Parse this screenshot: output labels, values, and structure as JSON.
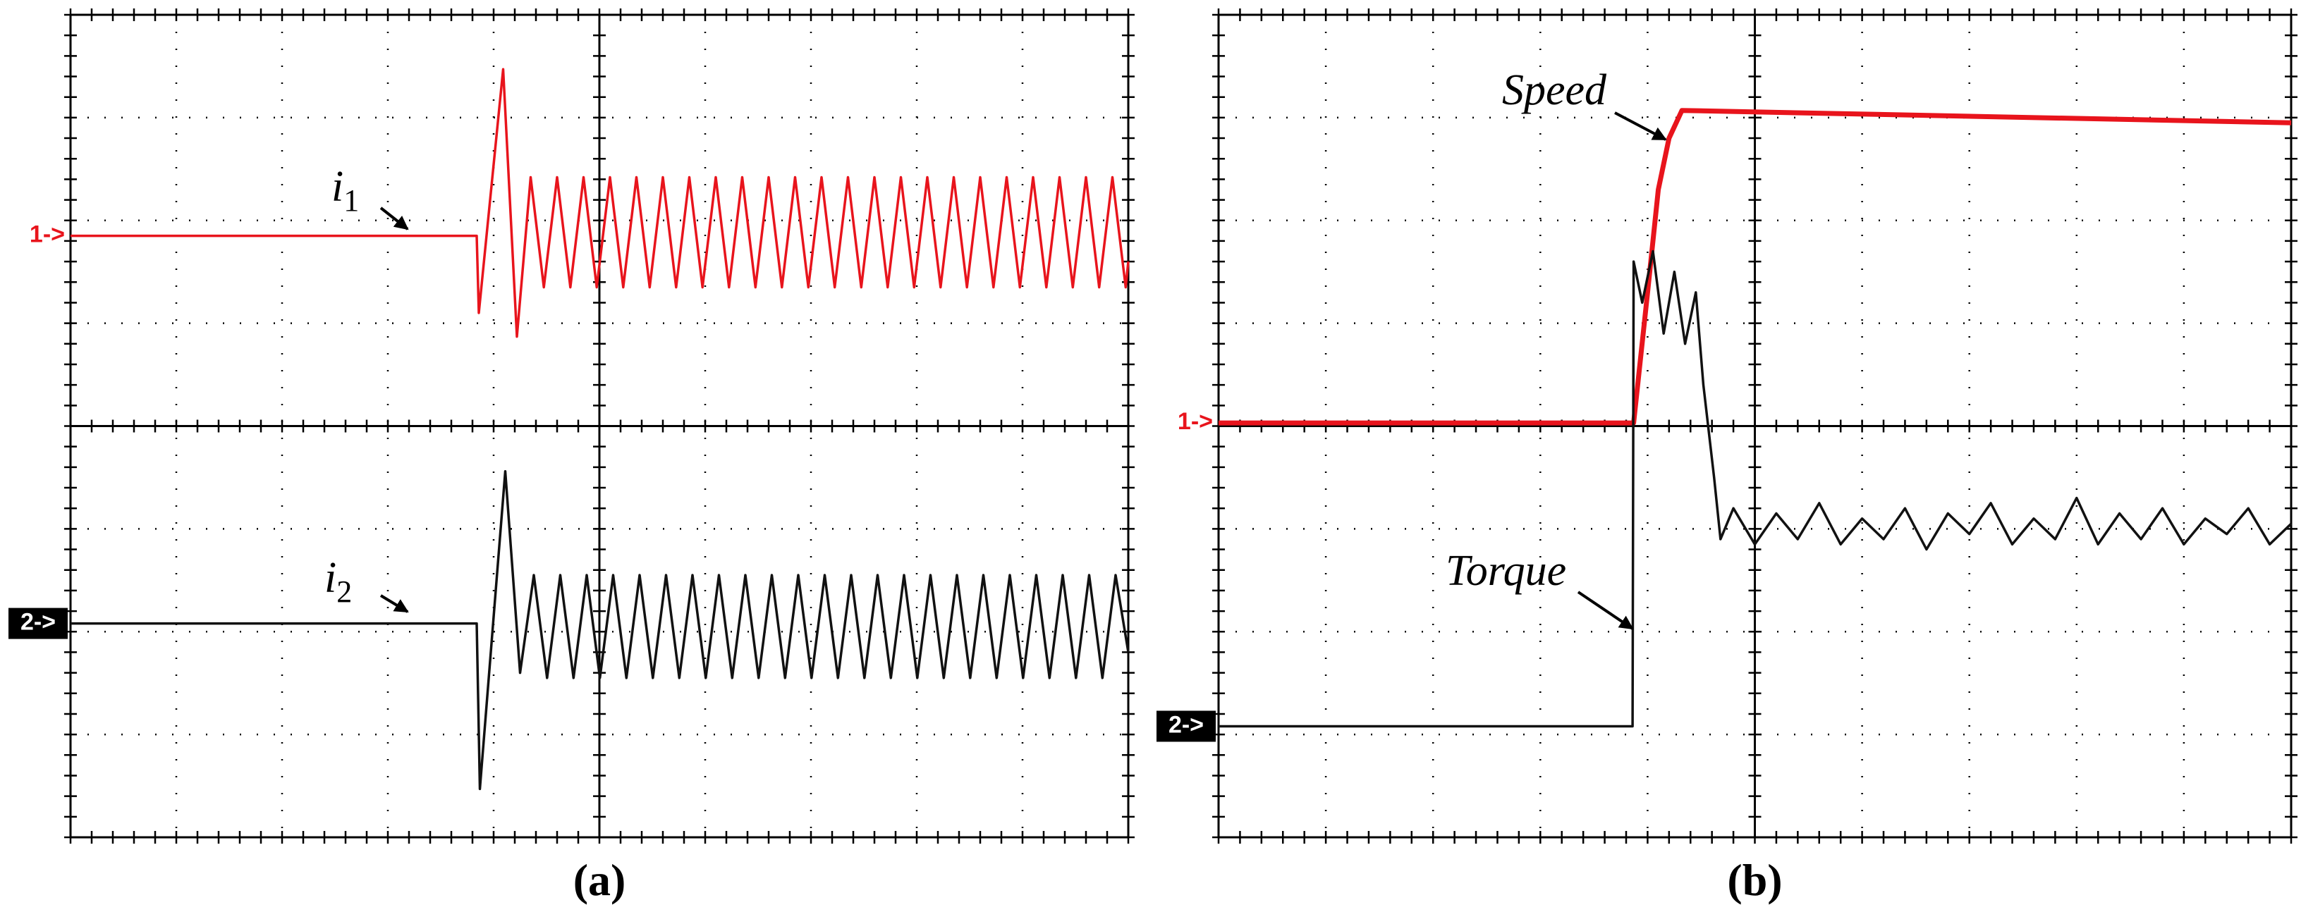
{
  "chart_data": [
    {
      "type": "line",
      "label": "(a)",
      "xlim": [
        0,
        10
      ],
      "ylim": [
        0,
        8
      ],
      "xticks": [
        0,
        1,
        2,
        3,
        4,
        5,
        6,
        7,
        8,
        9,
        10
      ],
      "yticks": [
        0,
        1,
        2,
        3,
        4,
        5,
        6,
        7,
        8
      ],
      "grid": true,
      "channels": [
        {
          "label": "1->",
          "level": 5.85,
          "color": "#e8141c",
          "boxed": false
        },
        {
          "label": "2->",
          "level": 2.08,
          "color": "#000000",
          "boxed": true
        }
      ],
      "series": [
        {
          "annotation": {
            "text": "i",
            "sub": "1"
          },
          "color": "#e8141c",
          "x": [
            0,
            3.84,
            3.86,
            4.09,
            4.22,
            4.35,
            4.475,
            4.6,
            4.725,
            4.85,
            4.975,
            5.1,
            5.225,
            5.35,
            5.475,
            5.6,
            5.725,
            5.85,
            5.975,
            6.1,
            6.225,
            6.35,
            6.475,
            6.6,
            6.725,
            6.85,
            6.975,
            7.1,
            7.225,
            7.35,
            7.475,
            7.6,
            7.725,
            7.85,
            7.975,
            8.1,
            8.225,
            8.35,
            8.475,
            8.6,
            8.725,
            8.85,
            8.975,
            9.1,
            9.225,
            9.35,
            9.475,
            9.6,
            9.725,
            9.85,
            9.975,
            10
          ],
          "values": [
            5.85,
            5.85,
            5.1,
            7.47,
            4.87,
            6.42,
            5.35,
            6.42,
            5.35,
            6.42,
            5.35,
            6.42,
            5.35,
            6.42,
            5.35,
            6.42,
            5.35,
            6.42,
            5.35,
            6.42,
            5.35,
            6.42,
            5.35,
            6.42,
            5.35,
            6.42,
            5.35,
            6.42,
            5.35,
            6.42,
            5.35,
            6.42,
            5.35,
            6.42,
            5.35,
            6.42,
            5.35,
            6.42,
            5.35,
            6.42,
            5.35,
            6.42,
            5.35,
            6.42,
            5.35,
            6.42,
            5.35,
            6.42,
            5.35,
            6.42,
            5.35,
            5.6
          ]
        },
        {
          "annotation": {
            "text": "i",
            "sub": "2"
          },
          "color": "#111111",
          "x": [
            0,
            3.84,
            3.87,
            4.11,
            4.25,
            4.38,
            4.505,
            4.63,
            4.755,
            4.88,
            5.005,
            5.13,
            5.255,
            5.38,
            5.505,
            5.63,
            5.755,
            5.88,
            6.005,
            6.13,
            6.255,
            6.38,
            6.505,
            6.63,
            6.755,
            6.88,
            7.005,
            7.13,
            7.255,
            7.38,
            7.505,
            7.63,
            7.755,
            7.88,
            8.005,
            8.13,
            8.255,
            8.38,
            8.505,
            8.63,
            8.755,
            8.88,
            9.005,
            9.13,
            9.255,
            9.38,
            9.505,
            9.63,
            9.755,
            9.88,
            10
          ],
          "values": [
            2.08,
            2.08,
            0.47,
            3.56,
            1.6,
            2.55,
            1.55,
            2.55,
            1.55,
            2.55,
            1.55,
            2.55,
            1.55,
            2.55,
            1.55,
            2.55,
            1.55,
            2.55,
            1.55,
            2.55,
            1.55,
            2.55,
            1.55,
            2.55,
            1.55,
            2.55,
            1.55,
            2.55,
            1.55,
            2.55,
            1.55,
            2.55,
            1.55,
            2.55,
            1.55,
            2.55,
            1.55,
            2.55,
            1.55,
            2.55,
            1.55,
            2.55,
            1.55,
            2.55,
            1.55,
            2.55,
            1.55,
            2.55,
            1.55,
            2.55,
            1.8
          ]
        }
      ]
    },
    {
      "type": "line",
      "label": "(b)",
      "xlim": [
        0,
        10
      ],
      "ylim": [
        0,
        8
      ],
      "xticks": [
        0,
        1,
        2,
        3,
        4,
        5,
        6,
        7,
        8,
        9,
        10
      ],
      "yticks": [
        0,
        1,
        2,
        3,
        4,
        5,
        6,
        7,
        8
      ],
      "grid": true,
      "channels": [
        {
          "label": "1->",
          "level": 4.03,
          "color": "#e8141c",
          "boxed": false
        },
        {
          "label": "2->",
          "level": 1.08,
          "color": "#000000",
          "boxed": true
        }
      ],
      "series": [
        {
          "annotation": {
            "text": "Speed"
          },
          "color": "#e8141c",
          "x": [
            0,
            3.87,
            4.0,
            4.1,
            4.2,
            4.32,
            10
          ],
          "values": [
            4.03,
            4.03,
            5.3,
            6.3,
            6.8,
            7.07,
            6.95
          ]
        },
        {
          "annotation": {
            "text": "Torque"
          },
          "color": "#111111",
          "x": [
            0,
            3.86,
            3.87,
            3.95,
            4.05,
            4.15,
            4.25,
            4.35,
            4.45,
            4.52,
            4.62,
            4.68,
            4.8,
            5,
            5.2,
            5.4,
            5.6,
            5.8,
            6,
            6.2,
            6.4,
            6.6,
            6.8,
            7,
            7.2,
            7.4,
            7.6,
            7.8,
            8,
            8.2,
            8.4,
            8.6,
            8.8,
            9,
            9.2,
            9.4,
            9.6,
            9.8,
            10
          ],
          "values": [
            1.08,
            1.08,
            5.6,
            5.2,
            5.7,
            4.9,
            5.5,
            4.8,
            5.3,
            4.4,
            3.5,
            2.9,
            3.2,
            2.85,
            3.15,
            2.9,
            3.25,
            2.85,
            3.1,
            2.9,
            3.2,
            2.8,
            3.15,
            2.95,
            3.25,
            2.85,
            3.1,
            2.9,
            3.3,
            2.85,
            3.15,
            2.9,
            3.2,
            2.85,
            3.1,
            2.95,
            3.2,
            2.85,
            3.05
          ]
        }
      ]
    }
  ]
}
